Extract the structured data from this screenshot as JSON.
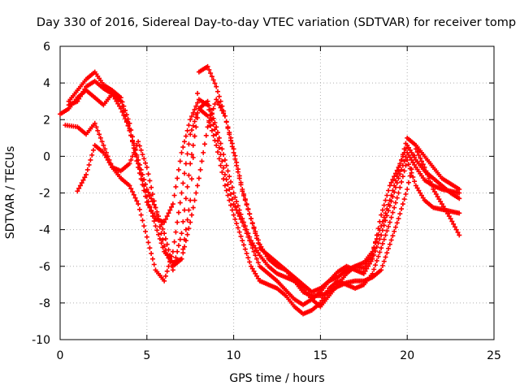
{
  "chart_data": {
    "type": "scatter",
    "title": "Day 330 of 2016, Sidereal Day-to-day VTEC variation (SDTVAR) for receiver tomp",
    "xlabel": "GPS time / hours",
    "ylabel": "SDTVAR / TECUs",
    "xlim": [
      0,
      25
    ],
    "ylim": [
      -10,
      6
    ],
    "x_ticks": [
      "0",
      "5",
      "10",
      "15",
      "20",
      "25"
    ],
    "y_ticks": [
      "-10",
      "-8",
      "-6",
      "-4",
      "-2",
      "0",
      "2",
      "4",
      "6"
    ],
    "grid": true,
    "marker": "+",
    "series_color": "#ff0000",
    "series": [
      {
        "x": [
          0.5,
          1.0,
          1.5,
          2.0,
          2.5,
          3.0,
          3.5,
          4.0,
          4.5,
          5.0,
          5.5,
          6.0,
          6.5,
          7.0,
          7.5,
          8.0,
          8.5,
          9.0,
          9.5,
          10.0,
          10.5,
          11.0,
          11.5,
          12.0,
          12.5,
          13.0,
          13.5,
          14.0,
          14.5,
          15.0,
          15.5,
          16.0,
          16.5,
          17.0,
          17.5,
          18.0,
          18.5,
          19.0,
          19.5,
          20.0,
          20.5,
          21.0,
          21.5,
          22.0,
          22.5,
          23.0
        ],
        "y": [
          2.8,
          3.0,
          3.8,
          4.1,
          3.7,
          3.4,
          2.6,
          1.5,
          -0.6,
          -2.5,
          -3.4,
          -3.6,
          -2.6,
          0.2,
          2.0,
          3.1,
          2.8,
          1.2,
          -1.0,
          -2.6,
          -3.6,
          -4.8,
          -6.0,
          -6.4,
          -6.8,
          -7.3,
          -7.8,
          -8.1,
          -7.8,
          -7.4,
          -6.8,
          -6.3,
          -6.0,
          -6.2,
          -6.4,
          -5.6,
          -4.3,
          -2.7,
          -1.2,
          0.2,
          -0.6,
          -1.3,
          -1.6,
          -1.8,
          -1.9,
          -2.0
        ]
      },
      {
        "x": [
          0.3,
          1.0,
          1.5,
          2.0,
          2.5,
          3.0,
          3.5,
          4.0,
          4.5,
          5.0,
          5.5,
          6.0,
          6.5,
          7.0,
          7.5,
          8.0,
          8.5,
          9.0,
          9.5,
          10.0,
          10.5,
          11.0,
          11.5,
          12.0,
          12.5,
          13.0,
          13.5,
          14.0,
          14.5,
          15.0,
          15.5,
          16.0,
          16.5,
          17.0,
          17.5,
          18.0,
          18.5,
          19.0,
          19.5,
          20.0,
          20.5,
          21.0,
          21.5,
          22.0,
          22.5,
          23.0
        ],
        "y": [
          1.7,
          1.6,
          1.2,
          1.8,
          0.6,
          -0.6,
          -1.2,
          -1.6,
          -2.6,
          -4.4,
          -6.2,
          -6.8,
          -5.2,
          -2.0,
          1.2,
          2.6,
          2.2,
          0.6,
          -1.6,
          -3.2,
          -4.6,
          -6.0,
          -6.8,
          -7.0,
          -7.2,
          -7.6,
          -8.2,
          -8.6,
          -8.4,
          -8.0,
          -7.2,
          -6.8,
          -7.0,
          -7.2,
          -7.0,
          -6.4,
          -5.0,
          -3.6,
          -2.0,
          -0.2,
          -1.6,
          -2.4,
          -2.8,
          -2.9,
          -3.0,
          -3.1
        ]
      },
      {
        "x": [
          1.0,
          1.5,
          2.0,
          2.5,
          3.0,
          3.5,
          4.0,
          4.5,
          5.0,
          5.5,
          6.0,
          6.5,
          7.0,
          7.5,
          8.0,
          8.5,
          9.0,
          9.5,
          10.0,
          10.5,
          11.0,
          11.5,
          12.0,
          12.5,
          13.0,
          13.5,
          14.0,
          14.5,
          15.0,
          15.5,
          16.0,
          16.5,
          17.0,
          17.5,
          18.0,
          18.5,
          19.0,
          19.5,
          20.0,
          20.5,
          21.0,
          21.5,
          22.0,
          22.5,
          23.0
        ],
        "y": [
          -1.9,
          -1.0,
          0.6,
          0.2,
          -0.6,
          -0.8,
          -0.4,
          0.8,
          -0.6,
          -2.8,
          -4.9,
          -6.2,
          -4.2,
          -0.4,
          2.6,
          3.0,
          1.6,
          -0.2,
          -2.0,
          -3.4,
          -4.6,
          -5.4,
          -6.0,
          -6.4,
          -6.6,
          -6.8,
          -7.4,
          -7.6,
          -7.6,
          -7.4,
          -7.1,
          -6.9,
          -6.8,
          -6.8,
          -6.6,
          -6.2,
          -4.8,
          -3.4,
          -1.8,
          0.4,
          -0.6,
          -1.8,
          -2.6,
          -3.4,
          -4.3
        ]
      },
      {
        "x": [
          0.0,
          0.5,
          1.0,
          1.5,
          2.0,
          2.5,
          3.0,
          3.5,
          4.0,
          4.5,
          5.0,
          5.5,
          6.0,
          6.5,
          7.0,
          7.5,
          8.0,
          8.5,
          9.0,
          9.5,
          10.0,
          10.5,
          11.0,
          11.5,
          12.0,
          12.5,
          13.0,
          13.5,
          14.0,
          14.5,
          15.0,
          15.5,
          16.0,
          16.5,
          17.0,
          17.5,
          18.0,
          18.5,
          19.0,
          19.5,
          20.0,
          20.5,
          21.0,
          21.5,
          22.0,
          22.5,
          23.0
        ],
        "y": [
          2.3,
          2.6,
          3.2,
          3.6,
          3.2,
          2.8,
          3.4,
          3.0,
          1.4,
          -0.2,
          -1.8,
          -2.8,
          -4.2,
          -6.0,
          -5.6,
          -3.6,
          -1.2,
          1.6,
          3.1,
          2.2,
          0.2,
          -1.9,
          -3.4,
          -5.0,
          -5.4,
          -5.8,
          -6.2,
          -6.6,
          -7.0,
          -7.4,
          -7.2,
          -6.8,
          -6.6,
          -6.2,
          -6.0,
          -6.1,
          -5.4,
          -3.2,
          -1.6,
          -0.6,
          0.6,
          -0.2,
          -0.8,
          -1.2,
          -1.6,
          -2.0,
          -2.3
        ]
      },
      {
        "x": [
          0.5,
          1.0,
          1.5,
          2.0,
          2.5,
          3.0,
          3.5,
          4.0,
          4.5,
          5.0,
          5.5,
          6.0,
          6.5,
          7.0,
          7.5,
          8.0,
          8.5,
          9.0,
          9.5,
          10.0,
          10.5,
          11.0,
          11.5,
          12.0,
          12.5,
          13.0,
          13.5,
          14.0,
          14.5,
          15.0,
          15.5,
          16.0,
          16.5,
          17.0,
          17.5,
          18.0,
          18.5,
          19.0,
          19.5,
          20.0,
          20.5,
          21.0,
          21.5,
          22.0,
          22.5,
          23.0
        ],
        "y": [
          3.0,
          3.6,
          4.2,
          4.6,
          3.9,
          3.6,
          3.2,
          1.8,
          -0.4,
          -2.2,
          -3.8,
          -5.2,
          -5.8,
          -5.6,
          -2.4,
          4.6,
          4.9,
          3.8,
          2.2,
          0.4,
          -1.8,
          -3.4,
          -4.8,
          -5.6,
          -6.0,
          -6.2,
          -6.8,
          -7.2,
          -7.8,
          -8.2,
          -7.6,
          -7.0,
          -6.4,
          -6.0,
          -5.8,
          -5.2,
          -3.8,
          -2.4,
          -0.8,
          1.0,
          0.6,
          0.0,
          -0.6,
          -1.2,
          -1.5,
          -1.8
        ]
      }
    ]
  }
}
